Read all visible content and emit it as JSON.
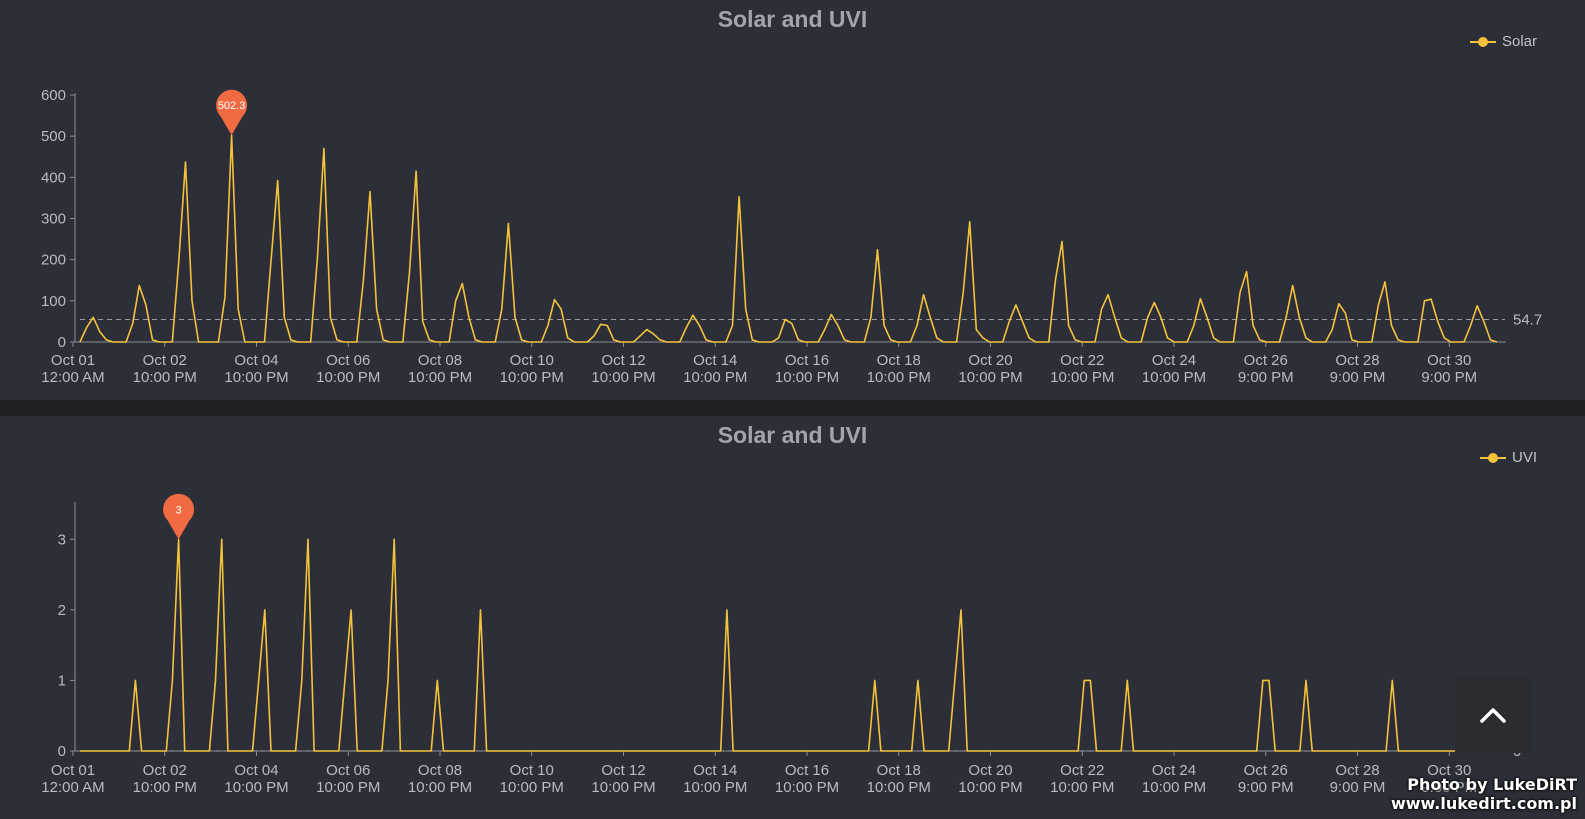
{
  "charts": [
    {
      "title": "Solar and UVI",
      "legend": "Solar",
      "mark_value": "502.3",
      "ref_value_label": "54.7"
    },
    {
      "title": "Solar and UVI",
      "legend": "UVI",
      "mark_value": "3",
      "ref_value_label": "0"
    }
  ],
  "watermark": {
    "line1": "Photo by LukeDiRT",
    "line2": "www.lukedirt.com.pl"
  },
  "colors": {
    "series": "#f5c33b",
    "marker": "#f26a42",
    "panel": "#2c2f37",
    "axis": "#8b8e94"
  },
  "chart_data": [
    {
      "type": "line",
      "title": "Solar and UVI",
      "series": [
        {
          "name": "Solar",
          "values": [
            0,
            35,
            60,
            25,
            5,
            0,
            0,
            0,
            45,
            137,
            90,
            5,
            0,
            0,
            0,
            200,
            437,
            100,
            0,
            0,
            0,
            0,
            110,
            502.3,
            80,
            0,
            0,
            0,
            0,
            200,
            392,
            60,
            5,
            0,
            0,
            0,
            200,
            470,
            60,
            5,
            0,
            0,
            0,
            150,
            365,
            80,
            5,
            0,
            0,
            0,
            170,
            415,
            50,
            5,
            0,
            0,
            0,
            100,
            142,
            60,
            5,
            0,
            0,
            0,
            80,
            288,
            60,
            5,
            0,
            0,
            0,
            40,
            103,
            80,
            10,
            0,
            0,
            0,
            15,
            43,
            40,
            5,
            0,
            0,
            0,
            15,
            30,
            20,
            5,
            0,
            0,
            0,
            35,
            65,
            40,
            5,
            0,
            0,
            0,
            40,
            353,
            80,
            5,
            0,
            0,
            0,
            10,
            55,
            45,
            5,
            0,
            0,
            0,
            30,
            67,
            40,
            5,
            0,
            0,
            0,
            60,
            224,
            40,
            5,
            0,
            0,
            0,
            40,
            115,
            60,
            10,
            0,
            0,
            0,
            120,
            292,
            30,
            10,
            0,
            0,
            0,
            50,
            90,
            50,
            10,
            0,
            0,
            0,
            150,
            244,
            40,
            5,
            0,
            0,
            0,
            80,
            115,
            60,
            10,
            0,
            0,
            0,
            60,
            96,
            60,
            10,
            0,
            0,
            0,
            40,
            105,
            60,
            10,
            0,
            0,
            0,
            120,
            171,
            40,
            5,
            0,
            0,
            0,
            60,
            137,
            60,
            10,
            0,
            0,
            0,
            30,
            93,
            70,
            5,
            0,
            0,
            0,
            90,
            146,
            40,
            5,
            0,
            0,
            0,
            100,
            104,
            50,
            10,
            0,
            0,
            0,
            40,
            88,
            50,
            5,
            0
          ]
        }
      ],
      "ylim": [
        0,
        600
      ],
      "yticks": [
        0,
        100,
        200,
        300,
        400,
        500,
        600
      ],
      "x_labels": [
        [
          "Oct 01",
          "12:00 AM"
        ],
        [
          "Oct 02",
          "10:00 PM"
        ],
        [
          "Oct 04",
          "10:00 PM"
        ],
        [
          "Oct 06",
          "10:00 PM"
        ],
        [
          "Oct 08",
          "10:00 PM"
        ],
        [
          "Oct 10",
          "10:00 PM"
        ],
        [
          "Oct 12",
          "10:00 PM"
        ],
        [
          "Oct 14",
          "10:00 PM"
        ],
        [
          "Oct 16",
          "10:00 PM"
        ],
        [
          "Oct 18",
          "10:00 PM"
        ],
        [
          "Oct 20",
          "10:00 PM"
        ],
        [
          "Oct 22",
          "10:00 PM"
        ],
        [
          "Oct 24",
          "10:00 PM"
        ],
        [
          "Oct 26",
          "9:00 PM"
        ],
        [
          "Oct 28",
          "9:00 PM"
        ],
        [
          "Oct 30",
          "9:00 PM"
        ]
      ],
      "mark_max": {
        "index": 23,
        "value": 502.3
      },
      "mark_line": {
        "value": 54.7
      },
      "legend": "top-right",
      "grid": false
    },
    {
      "type": "line",
      "title": "Solar and UVI",
      "series": [
        {
          "name": "UVI",
          "values": [
            0,
            0,
            0,
            0,
            0,
            0,
            0,
            0,
            0,
            1,
            0,
            0,
            0,
            0,
            0,
            1,
            3,
            0,
            0,
            0,
            0,
            0,
            1,
            3,
            0,
            0,
            0,
            0,
            0,
            1,
            2,
            0,
            0,
            0,
            0,
            0,
            1,
            3,
            0,
            0,
            0,
            0,
            0,
            1,
            2,
            0,
            0,
            0,
            0,
            0,
            1,
            3,
            0,
            0,
            0,
            0,
            0,
            0,
            1,
            0,
            0,
            0,
            0,
            0,
            0,
            2,
            0,
            0,
            0,
            0,
            0,
            0,
            0,
            0,
            0,
            0,
            0,
            0,
            0,
            0,
            0,
            0,
            0,
            0,
            0,
            0,
            0,
            0,
            0,
            0,
            0,
            0,
            0,
            0,
            0,
            0,
            0,
            0,
            0,
            0,
            0,
            0,
            0,
            0,
            0,
            2,
            0,
            0,
            0,
            0,
            0,
            0,
            0,
            0,
            0,
            0,
            0,
            0,
            0,
            0,
            0,
            0,
            0,
            0,
            0,
            0,
            0,
            0,
            0,
            1,
            0,
            0,
            0,
            0,
            0,
            0,
            1,
            0,
            0,
            0,
            0,
            0,
            1,
            2,
            0,
            0,
            0,
            0,
            0,
            0,
            0,
            0,
            0,
            0,
            0,
            0,
            0,
            0,
            0,
            0,
            0,
            0,
            0,
            1,
            1,
            0,
            0,
            0,
            0,
            0,
            1,
            0,
            0,
            0,
            0,
            0,
            0,
            0,
            0,
            0,
            0,
            0,
            0,
            0,
            0,
            0,
            0,
            0,
            0,
            0,
            0,
            0,
            1,
            1,
            0,
            0,
            0,
            0,
            0,
            1,
            0,
            0,
            0,
            0,
            0,
            0,
            0,
            0,
            0,
            0,
            0,
            0,
            0,
            1,
            0,
            0,
            0,
            0,
            0,
            0,
            0,
            0,
            0,
            0,
            0,
            0,
            0,
            0,
            0,
            0,
            0
          ]
        }
      ],
      "ylim": [
        0,
        3.5
      ],
      "yticks": [
        0,
        1,
        2,
        3
      ],
      "x_labels": [
        [
          "Oct 01",
          "12:00 AM"
        ],
        [
          "Oct 02",
          "10:00 PM"
        ],
        [
          "Oct 04",
          "10:00 PM"
        ],
        [
          "Oct 06",
          "10:00 PM"
        ],
        [
          "Oct 08",
          "10:00 PM"
        ],
        [
          "Oct 10",
          "10:00 PM"
        ],
        [
          "Oct 12",
          "10:00 PM"
        ],
        [
          "Oct 14",
          "10:00 PM"
        ],
        [
          "Oct 16",
          "10:00 PM"
        ],
        [
          "Oct 18",
          "10:00 PM"
        ],
        [
          "Oct 20",
          "10:00 PM"
        ],
        [
          "Oct 22",
          "10:00 PM"
        ],
        [
          "Oct 24",
          "10:00 PM"
        ],
        [
          "Oct 26",
          "9:00 PM"
        ],
        [
          "Oct 28",
          "9:00 PM"
        ],
        [
          "Oct 30",
          "9:00 PM"
        ]
      ],
      "mark_max": {
        "index": 16,
        "value": 3
      },
      "mark_line": {
        "value": 0
      },
      "legend": "top-right",
      "grid": false
    }
  ]
}
